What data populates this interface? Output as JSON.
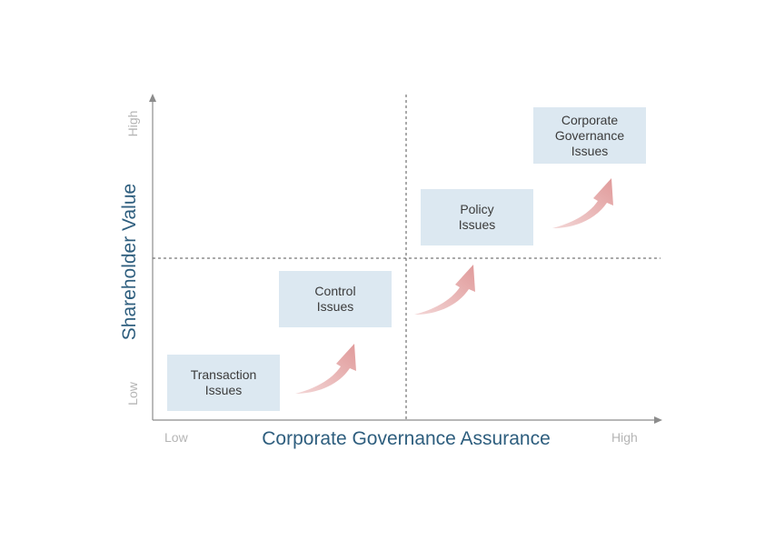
{
  "axes": {
    "x_title": "Corporate Governance Assurance",
    "y_title": "Shareholder Value",
    "x_low": "Low",
    "x_high": "High",
    "y_low": "Low",
    "y_high": "High"
  },
  "boxes": [
    {
      "lines": [
        "Transaction",
        "Issues"
      ]
    },
    {
      "lines": [
        "Control",
        "Issues"
      ]
    },
    {
      "lines": [
        "Policy",
        "Issues"
      ]
    },
    {
      "lines": [
        "Corporate",
        "Governance",
        "Issues"
      ]
    }
  ],
  "colors": {
    "axis": "#8c8c8c",
    "box_fill": "#dce8f1",
    "arrow": "#e2a4a4",
    "title": "#2e5e7e",
    "tick": "#b5b5b5"
  }
}
